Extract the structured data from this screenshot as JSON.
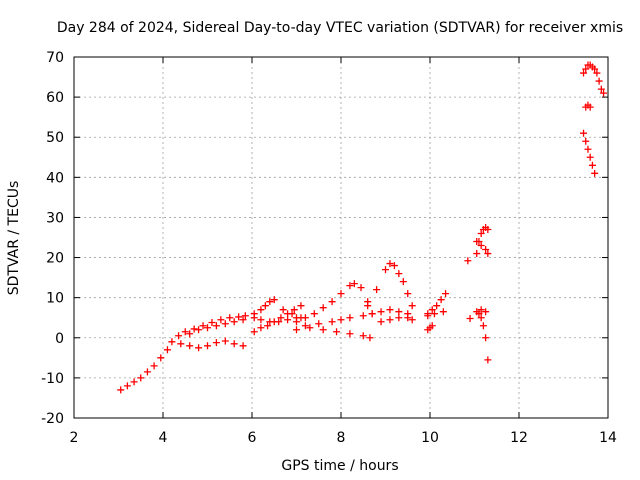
{
  "chart_data": {
    "type": "scatter",
    "title": "Day 284 of 2024, Sidereal Day-to-day VTEC variation (SDTVAR) for receiver xmis",
    "xlabel": "GPS time / hours",
    "ylabel": "SDTVAR / TECUs",
    "xlim": [
      2,
      14
    ],
    "ylim": [
      -20,
      70
    ],
    "xticks": [
      2,
      4,
      6,
      8,
      10,
      12,
      14
    ],
    "yticks": [
      -20,
      -10,
      0,
      10,
      20,
      30,
      40,
      50,
      60,
      70
    ],
    "grid": true,
    "marker": "+",
    "color": "#ff0000",
    "series": [
      {
        "x": [
          3.05,
          3.2,
          3.35,
          3.5,
          3.65,
          3.8,
          3.95,
          4.1,
          4.2,
          4.35,
          4.5,
          4.7,
          4.9,
          5.1,
          5.3,
          5.5,
          5.7,
          5.85
        ],
        "y": [
          -13,
          -12,
          -11,
          -10,
          -8.5,
          -7,
          -5,
          -3,
          -1,
          0.5,
          1.5,
          2.2,
          3,
          3.8,
          4.5,
          5,
          5.2,
          5.5
        ]
      },
      {
        "x": [
          4.4,
          4.6,
          4.8,
          5.0,
          5.2,
          5.4,
          5.6,
          5.8
        ],
        "y": [
          -1.5,
          -2,
          -2.5,
          -2,
          -1.2,
          -0.8,
          -1.5,
          -2
        ]
      },
      {
        "x": [
          4.6,
          4.8,
          5.0,
          5.2,
          5.4,
          5.6,
          5.8
        ],
        "y": [
          1,
          2,
          2.5,
          3,
          3.5,
          4,
          4.5
        ]
      },
      {
        "x": [
          6.05,
          6.2,
          6.35,
          6.5,
          6.65,
          6.8,
          6.95,
          7.1
        ],
        "y": [
          1.5,
          2.5,
          3,
          4,
          5,
          6,
          7,
          8
        ]
      },
      {
        "x": [
          6.05,
          6.2,
          6.3,
          6.4,
          6.5,
          6.7,
          6.9,
          7.1
        ],
        "y": [
          6,
          7,
          8,
          9,
          9.5,
          7,
          6,
          5
        ]
      },
      {
        "x": [
          6.05,
          6.2,
          6.4,
          6.6,
          6.8,
          7.0
        ],
        "y": [
          5,
          4.5,
          4,
          4,
          4.5,
          5
        ]
      },
      {
        "x": [
          7.0,
          7.2,
          7.4,
          7.6,
          7.8,
          8.0,
          8.2,
          8.3,
          8.45,
          8.6,
          8.7
        ],
        "y": [
          4,
          5,
          6,
          7.5,
          9,
          11,
          13,
          13.5,
          12.5,
          9,
          6
        ]
      },
      {
        "x": [
          7.0,
          7.3,
          7.6,
          7.9,
          8.2,
          8.5,
          8.65
        ],
        "y": [
          2,
          2.5,
          2,
          1.5,
          1,
          0.5,
          0
        ]
      },
      {
        "x": [
          7.2,
          7.5,
          7.8,
          8.0,
          8.2,
          8.5,
          8.7,
          8.9,
          9.1,
          9.3,
          9.5
        ],
        "y": [
          3,
          3.5,
          4,
          4.5,
          5,
          5.5,
          6,
          6.5,
          7,
          6.5,
          6
        ]
      },
      {
        "x": [
          8.6,
          8.8,
          9.0,
          9.1,
          9.2,
          9.3,
          9.4,
          9.5,
          9.6
        ],
        "y": [
          8,
          12,
          17,
          18.5,
          18,
          16,
          14,
          11,
          8
        ]
      },
      {
        "x": [
          8.9,
          9.1,
          9.3,
          9.5,
          9.6
        ],
        "y": [
          4,
          4.5,
          5,
          5,
          4.5
        ]
      },
      {
        "x": [
          9.95,
          10.0,
          10.05
        ],
        "y": [
          2,
          2.5,
          3
        ]
      },
      {
        "x": [
          9.95,
          10.05,
          10.15,
          10.25,
          10.35
        ],
        "y": [
          6,
          7,
          8,
          9.5,
          11
        ]
      },
      {
        "x": [
          9.95,
          10.1,
          10.3
        ],
        "y": [
          5.5,
          6,
          6.5
        ]
      },
      {
        "x": [
          10.85,
          10.9
        ],
        "y": [
          19.2,
          4.8
        ]
      },
      {
        "x": [
          11.05,
          11.1,
          11.15,
          11.2,
          11.25,
          11.3
        ],
        "y": [
          21,
          24,
          26,
          27,
          27.5,
          27
        ]
      },
      {
        "x": [
          11.05,
          11.15,
          11.25,
          11.3
        ],
        "y": [
          24,
          23,
          22,
          21
        ]
      },
      {
        "x": [
          11.1,
          11.15,
          11.2,
          11.25,
          11.3
        ],
        "y": [
          6,
          5,
          3,
          0,
          -5.5
        ]
      },
      {
        "x": [
          11.05,
          11.15,
          11.25
        ],
        "y": [
          6.5,
          7,
          6.5
        ]
      },
      {
        "x": [
          13.45,
          13.5,
          13.55,
          13.6,
          13.65,
          13.7,
          13.75,
          13.8,
          13.85,
          13.9
        ],
        "y": [
          66,
          67,
          68,
          68,
          67.5,
          67,
          66,
          64,
          62,
          61
        ]
      },
      {
        "x": [
          13.5,
          13.55,
          13.6
        ],
        "y": [
          57.5,
          58,
          57.5
        ]
      },
      {
        "x": [
          13.45,
          13.5,
          13.55,
          13.6,
          13.65,
          13.7
        ],
        "y": [
          51,
          49,
          47,
          45,
          43,
          41
        ]
      }
    ]
  }
}
